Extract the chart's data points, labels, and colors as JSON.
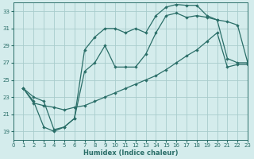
{
  "background_color": "#d4ecec",
  "grid_color": "#a8cccc",
  "line_color": "#2a6e68",
  "xlabel": "Humidex (Indice chaleur)",
  "xlim": [
    0,
    23
  ],
  "ylim": [
    18,
    34
  ],
  "yticks": [
    19,
    21,
    23,
    25,
    27,
    29,
    31,
    33
  ],
  "xticks": [
    0,
    1,
    2,
    3,
    4,
    5,
    6,
    7,
    8,
    9,
    10,
    11,
    12,
    13,
    14,
    15,
    16,
    17,
    18,
    19,
    20,
    21,
    22,
    23
  ],
  "curve1_x": [
    1,
    2,
    3,
    4,
    5,
    6,
    7,
    8,
    9,
    10,
    11,
    12,
    13,
    14,
    15,
    16,
    17,
    18,
    19,
    20,
    21,
    22,
    23
  ],
  "curve1_y": [
    24.0,
    23.0,
    22.5,
    19.2,
    19.5,
    20.5,
    28.5,
    30.0,
    31.0,
    31.0,
    30.5,
    31.0,
    30.5,
    32.5,
    33.5,
    33.8,
    33.7,
    33.7,
    32.5,
    32.0,
    31.8,
    31.4,
    27.0
  ],
  "curve2_x": [
    1,
    2,
    3,
    4,
    5,
    6,
    7,
    8,
    9,
    10,
    11,
    12,
    13,
    14,
    15,
    16,
    17,
    18,
    19,
    20,
    21,
    22,
    23
  ],
  "curve2_y": [
    24.0,
    22.5,
    19.5,
    19.0,
    19.5,
    20.5,
    26.0,
    27.0,
    29.0,
    26.5,
    26.5,
    26.5,
    28.0,
    30.5,
    32.5,
    32.8,
    32.3,
    32.5,
    32.3,
    32.0,
    27.5,
    27.0,
    27.0
  ],
  "curve3_x": [
    1,
    2,
    3,
    4,
    5,
    6,
    7,
    8,
    9,
    10,
    11,
    12,
    13,
    14,
    15,
    16,
    17,
    18,
    19,
    20,
    21,
    22,
    23
  ],
  "curve3_y": [
    24.0,
    22.3,
    22.0,
    21.8,
    21.5,
    21.8,
    22.0,
    22.5,
    23.0,
    23.5,
    24.0,
    24.5,
    25.0,
    25.5,
    26.2,
    27.0,
    27.8,
    28.5,
    29.5,
    30.5,
    26.5,
    26.8,
    26.8
  ]
}
